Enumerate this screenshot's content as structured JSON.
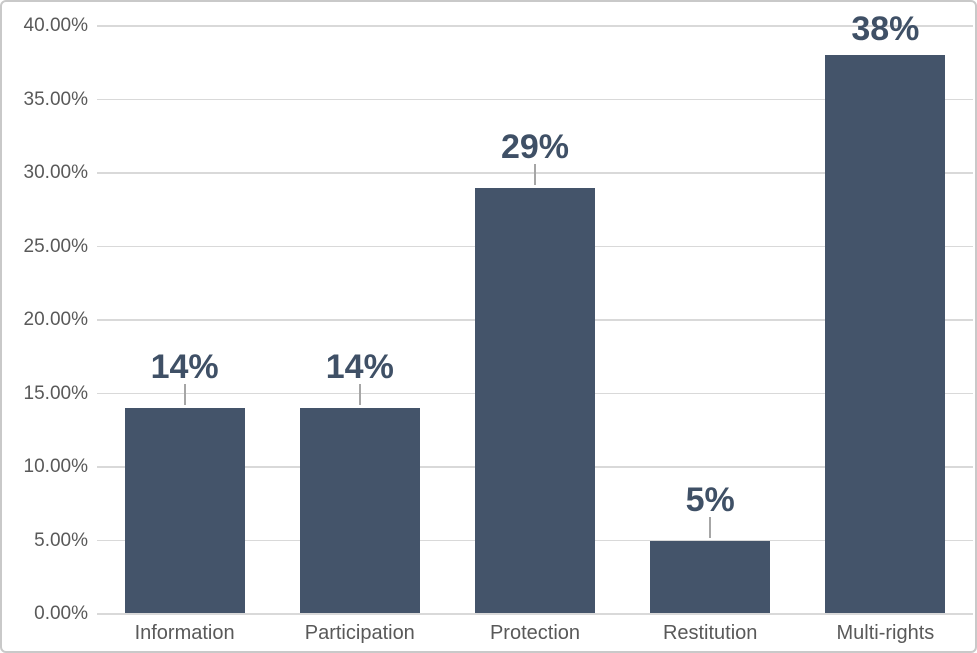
{
  "chart_data": {
    "type": "bar",
    "title": "",
    "xlabel": "",
    "ylabel": "",
    "categories": [
      "Information",
      "Participation",
      "Protection",
      "Restitution",
      "Multi-rights"
    ],
    "values": [
      14,
      14,
      29,
      5,
      38
    ],
    "data_labels": [
      "14%",
      "14%",
      "29%",
      "5%",
      "38%"
    ],
    "leader_lines": [
      true,
      true,
      true,
      true,
      false
    ],
    "ylim": [
      0,
      40
    ],
    "ytick_step": 5,
    "ytick_labels": [
      "0.00%",
      "5.00%",
      "10.00%",
      "15.00%",
      "20.00%",
      "25.00%",
      "30.00%",
      "35.00%",
      "40.00%"
    ],
    "grid": true,
    "legend": false
  },
  "style": {
    "bar_color": "#44546A",
    "data_label_color": "#3F5066",
    "tick_label_color": "#595959",
    "gridline_color": "#D9D9D9",
    "axis_line_color": "#D9D9D9",
    "leader_line_color": "#A6A6A6",
    "border_color": "#C9C9C9",
    "background": "#FFFFFF"
  }
}
